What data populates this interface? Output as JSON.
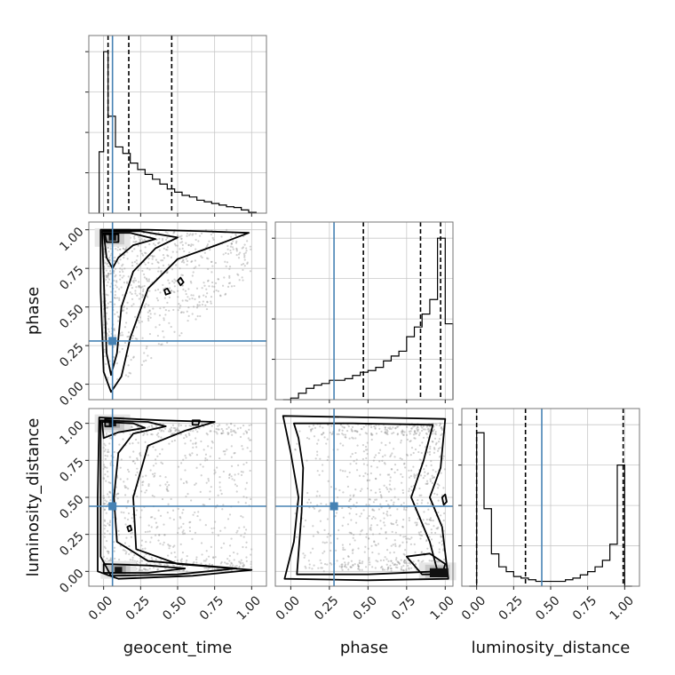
{
  "chart_data": {
    "type": "corner",
    "parameters": [
      "geocent_time",
      "phase",
      "luminosity_distance"
    ],
    "axis_labels": {
      "x": [
        "geocent_time",
        "phase",
        "luminosity_distance"
      ],
      "y": [
        "",
        "phase",
        "luminosity_distance"
      ]
    },
    "tick_values": [
      0.0,
      0.25,
      0.5,
      0.75,
      1.0
    ],
    "tick_labels": [
      "0.00",
      "0.25",
      "0.50",
      "0.75",
      "1.00"
    ],
    "truths": {
      "geocent_time": 0.06,
      "phase": 0.28,
      "luminosity_distance": 0.44
    },
    "truth_color": "#4682b4",
    "ranges": {
      "geocent_time": [
        -0.1,
        1.1
      ],
      "phase": [
        -0.1,
        1.05
      ],
      "luminosity_distance": [
        -0.1,
        1.1
      ]
    },
    "grid": true,
    "histograms": [
      {
        "parameter": "geocent_time",
        "bin_edges": [
          -0.03,
          0.0,
          0.03,
          0.08,
          0.13,
          0.18,
          0.23,
          0.28,
          0.33,
          0.38,
          0.43,
          0.48,
          0.53,
          0.58,
          0.63,
          0.68,
          0.73,
          0.78,
          0.83,
          0.88,
          0.93,
          0.98,
          1.03
        ],
        "counts": [
          0.38,
          1.0,
          0.6,
          0.41,
          0.37,
          0.31,
          0.27,
          0.24,
          0.21,
          0.18,
          0.15,
          0.13,
          0.11,
          0.1,
          0.08,
          0.07,
          0.06,
          0.05,
          0.04,
          0.035,
          0.02,
          0.005
        ],
        "quantile_lines": [
          0.03,
          0.17,
          0.46
        ],
        "ymax": 1.1
      },
      {
        "parameter": "phase",
        "bin_edges": [
          -0.05,
          0.0,
          0.05,
          0.1,
          0.15,
          0.2,
          0.25,
          0.3,
          0.35,
          0.4,
          0.45,
          0.5,
          0.55,
          0.6,
          0.65,
          0.7,
          0.75,
          0.8,
          0.85,
          0.9,
          0.95,
          1.0,
          1.05
        ],
        "counts": [
          0.0,
          0.01,
          0.04,
          0.07,
          0.09,
          0.1,
          0.12,
          0.12,
          0.13,
          0.15,
          0.17,
          0.18,
          0.2,
          0.24,
          0.27,
          0.3,
          0.39,
          0.45,
          0.53,
          0.62,
          1.0,
          0.47
        ],
        "quantile_lines": [
          0.47,
          0.84,
          0.97
        ],
        "ymax": 1.1
      },
      {
        "parameter": "luminosity_distance",
        "bin_edges": [
          -0.05,
          0.0,
          0.05,
          0.1,
          0.15,
          0.2,
          0.25,
          0.3,
          0.35,
          0.4,
          0.45,
          0.5,
          0.55,
          0.6,
          0.65,
          0.7,
          0.75,
          0.8,
          0.85,
          0.9,
          0.95,
          1.0,
          1.05
        ],
        "counts": [
          0.0,
          0.95,
          0.48,
          0.2,
          0.12,
          0.09,
          0.06,
          0.05,
          0.04,
          0.03,
          0.03,
          0.03,
          0.03,
          0.04,
          0.05,
          0.07,
          0.09,
          0.12,
          0.16,
          0.26,
          0.75,
          0.0
        ],
        "quantile_lines": [
          0.0,
          0.33,
          0.99
        ],
        "ymax": 1.1
      }
    ],
    "panels_2d": [
      {
        "x": "geocent_time",
        "y": "phase",
        "density_peak": [
          0.05,
          0.95
        ],
        "contour_levels": [
          "outer",
          "middle",
          "inner",
          "core"
        ]
      },
      {
        "x": "geocent_time",
        "y": "luminosity_distance",
        "density_peaks": [
          [
            0.05,
            1.0
          ],
          [
            0.05,
            0.0
          ]
        ],
        "contour_levels": [
          "outer",
          "middle",
          "inner",
          "core"
        ]
      },
      {
        "x": "phase",
        "y": "luminosity_distance",
        "density_peaks": [
          [
            0.95,
            0.0
          ],
          [
            0.95,
            1.0
          ]
        ],
        "contour_levels": [
          "outer",
          "middle",
          "inner",
          "core"
        ]
      }
    ]
  }
}
